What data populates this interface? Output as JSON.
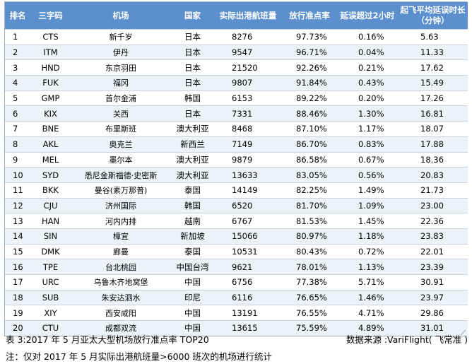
{
  "table": {
    "headers": {
      "rank": "排名",
      "code": "三字码",
      "airport": "机场",
      "country": "国家",
      "flights": "实际出港航班量",
      "on_time_rate": "放行准点率",
      "delay_over_2h": "延误超过2小时",
      "avg_delay_line1": "起飞平均延误时长",
      "avg_delay_line2": "（分钟）"
    },
    "rows": [
      {
        "rank": "1",
        "code": "CTS",
        "airport": "新千岁",
        "country": "日本",
        "flights": "8276",
        "rate": "97.73%",
        "delay2h": "0.16%",
        "avg": "5.63"
      },
      {
        "rank": "2",
        "code": "ITM",
        "airport": "伊丹",
        "country": "日本",
        "flights": "9547",
        "rate": "96.71%",
        "delay2h": "0.04%",
        "avg": "11.33"
      },
      {
        "rank": "3",
        "code": "HND",
        "airport": "东京羽田",
        "country": "日本",
        "flights": "21520",
        "rate": "92.26%",
        "delay2h": "0.21%",
        "avg": "17.62"
      },
      {
        "rank": "4",
        "code": "FUK",
        "airport": "福冈",
        "country": "日本",
        "flights": "9807",
        "rate": "91.84%",
        "delay2h": "0.43%",
        "avg": "15.49"
      },
      {
        "rank": "5",
        "code": "GMP",
        "airport": "首尔金浦",
        "country": "韩国",
        "flights": "6153",
        "rate": "89.22%",
        "delay2h": "0.20%",
        "avg": "17.26"
      },
      {
        "rank": "6",
        "code": "KIX",
        "airport": "关西",
        "country": "日本",
        "flights": "7331",
        "rate": "88.46%",
        "delay2h": "1.30%",
        "avg": "16.81"
      },
      {
        "rank": "7",
        "code": "BNE",
        "airport": "布里斯班",
        "country": "澳大利亚",
        "flights": "8468",
        "rate": "87.10%",
        "delay2h": "1.17%",
        "avg": "18.07"
      },
      {
        "rank": "8",
        "code": "AKL",
        "airport": "奥克兰",
        "country": "新西兰",
        "flights": "7149",
        "rate": "86.70%",
        "delay2h": "0.83%",
        "avg": "17.88"
      },
      {
        "rank": "9",
        "code": "MEL",
        "airport": "墨尔本",
        "country": "澳大利亚",
        "flights": "9879",
        "rate": "86.58%",
        "delay2h": "0.67%",
        "avg": "18.36"
      },
      {
        "rank": "10",
        "code": "SYD",
        "airport": "悉尼金斯福德·史密斯",
        "country": "澳大利亚",
        "flights": "13633",
        "rate": "83.05%",
        "delay2h": "0.56%",
        "avg": "20.83"
      },
      {
        "rank": "11",
        "code": "BKK",
        "airport": "曼谷(素万那普)",
        "country": "泰国",
        "flights": "14149",
        "rate": "82.25%",
        "delay2h": "1.49%",
        "avg": "21.73"
      },
      {
        "rank": "12",
        "code": "CJU",
        "airport": "济州国际",
        "country": "韩国",
        "flights": "6520",
        "rate": "81.70%",
        "delay2h": "1.09%",
        "avg": "23.00"
      },
      {
        "rank": "13",
        "code": "HAN",
        "airport": "河内内排",
        "country": "越南",
        "flights": "6767",
        "rate": "81.53%",
        "delay2h": "1.45%",
        "avg": "22.36"
      },
      {
        "rank": "14",
        "code": "SIN",
        "airport": "樟宜",
        "country": "新加坡",
        "flights": "15066",
        "rate": "80.97%",
        "delay2h": "1.18%",
        "avg": "23.83"
      },
      {
        "rank": "15",
        "code": "DMK",
        "airport": "廊曼",
        "country": "泰国",
        "flights": "10531",
        "rate": "80.43%",
        "delay2h": "0.72%",
        "avg": "22.01"
      },
      {
        "rank": "16",
        "code": "TPE",
        "airport": "台北桃园",
        "country": "中国台湾",
        "flights": "9621",
        "rate": "78.01%",
        "delay2h": "1.13%",
        "avg": "23.39"
      },
      {
        "rank": "17",
        "code": "URC",
        "airport": "乌鲁木齐地窝堡",
        "country": "中国",
        "flights": "6756",
        "rate": "77.38%",
        "delay2h": "5.71%",
        "avg": "30.91"
      },
      {
        "rank": "18",
        "code": "SUB",
        "airport": "朱安达泗水",
        "country": "印尼",
        "flights": "6116",
        "rate": "76.65%",
        "delay2h": "1.46%",
        "avg": "23.97"
      },
      {
        "rank": "19",
        "code": "XIY",
        "airport": "西安咸阳",
        "country": "中国",
        "flights": "13191",
        "rate": "76.55%",
        "delay2h": "4.71%",
        "avg": "29.86"
      },
      {
        "rank": "20",
        "code": "CTU",
        "airport": "成都双流",
        "country": "中国",
        "flights": "13615",
        "rate": "75.59%",
        "delay2h": "4.89%",
        "avg": "31.01"
      }
    ]
  },
  "caption": "表 3:2017 年 5 月亚太大型机场放行准点率 TOP20",
  "source": "数据来源 :VariFlight( 飞常准 )",
  "note": "注：仅对 2017 年 5 月实际出港航班量>6000 班次的机场进行统计",
  "colors": {
    "header_bg": "#5b8fce",
    "header_text": "#ffffff",
    "stripe_bg": "#edf2f8",
    "row_border": "#c7d3e1"
  }
}
